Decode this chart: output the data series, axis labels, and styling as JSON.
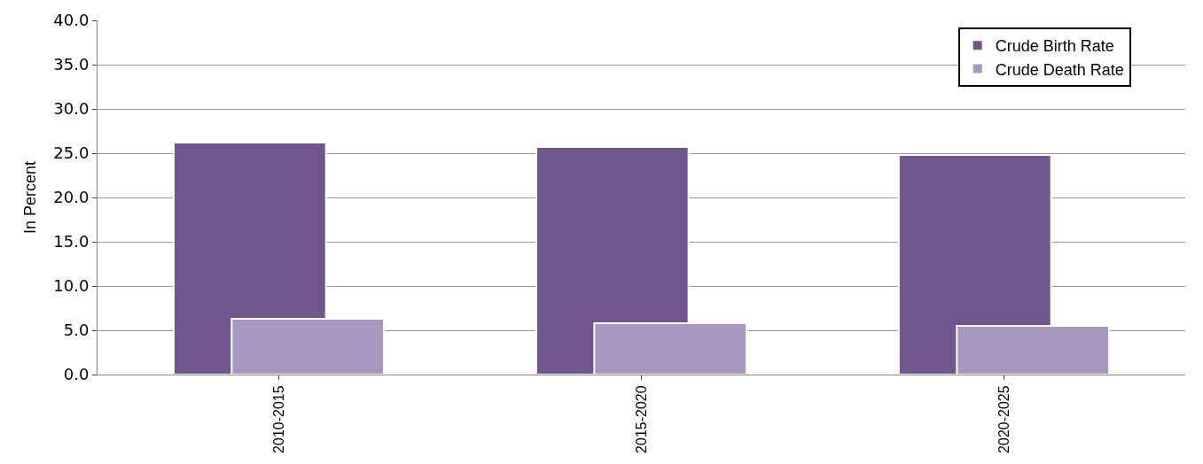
{
  "chart_data": {
    "type": "bar",
    "ylabel": "In Percent",
    "categories": [
      "2010-2015",
      "2015-2020",
      "2020-2025"
    ],
    "series": [
      {
        "name": "Crude Birth Rate",
        "color": "#72558c",
        "values": [
          26.2,
          25.7,
          24.8
        ]
      },
      {
        "name": "Crude Death Rate",
        "color": "#a898c0",
        "values": [
          6.3,
          5.8,
          5.5
        ]
      }
    ],
    "ylim": [
      0,
      40
    ],
    "yticks": [
      {
        "value": 0,
        "label": "0.0"
      },
      {
        "value": 5,
        "label": "5.0"
      },
      {
        "value": 10,
        "label": "10.0"
      },
      {
        "value": 15,
        "label": "15.0"
      },
      {
        "value": 20,
        "label": "20.0"
      },
      {
        "value": 25,
        "label": "25.0"
      },
      {
        "value": 30,
        "label": "30.0"
      },
      {
        "value": 35,
        "label": "35.0"
      },
      {
        "value": 40,
        "label": "40.0"
      }
    ],
    "grid": "y",
    "legend": "top right"
  }
}
